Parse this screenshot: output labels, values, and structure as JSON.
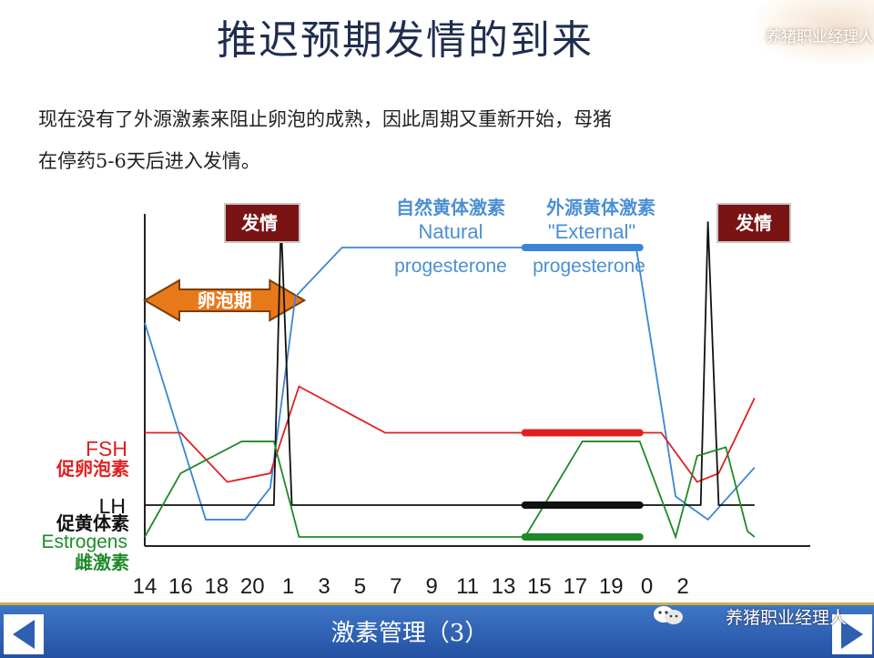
{
  "slide": {
    "title": "推迟预期发情的到来",
    "watermark": "养猪职业经理人",
    "body_line1": "现在没有了外源激素来阻止卵泡的成熟，因此周期又重新开始，母猪",
    "body_line2": "在停药5-6天后进入发情。",
    "footer_title": "激素管理（3）",
    "footer_watermark": "养猪职业经理人"
  },
  "colors": {
    "progesterone": "#3a86d6",
    "fsh": "#e02020",
    "lh": "#111111",
    "estrogens": "#1f8a2a",
    "label_blue": "#4b8fd3",
    "estrus_box": "#7a1414",
    "follicle_arrow": "#e8791a",
    "footer": "#2e5fb0"
  },
  "icons": {
    "nav_left": "left-arrow-icon",
    "nav_right": "right-arrow-icon",
    "wechat": "wechat-icon"
  },
  "chart_data": {
    "type": "line",
    "x_ticks": [
      "14",
      "16",
      "18",
      "20",
      "1",
      "3",
      "5",
      "7",
      "9",
      "11",
      "13",
      "15",
      "17",
      "19",
      "0",
      "2"
    ],
    "labels": {
      "estrus": "发情",
      "follicular_phase": "卵泡期",
      "natural_cn": "自然黄体激素",
      "natural_en1": "Natural",
      "natural_en2": "progesterone",
      "external_cn": "外源黄体激素",
      "external_en1": "\"External\"",
      "external_en2": "progesterone",
      "fsh_en": "FSH",
      "fsh_cn": "促卵泡素",
      "lh_en": "LH",
      "lh_cn": "促黄体素",
      "estrogens_en": "Estrogens",
      "estrogens_cn": "雌激素"
    },
    "series": [
      {
        "key": "progesterone",
        "values": [
          [
            0,
            0.74
          ],
          [
            1.7,
            0.06
          ],
          [
            2.8,
            0.06
          ],
          [
            3.5,
            0.17
          ],
          [
            4.2,
            0.83
          ],
          [
            5.5,
            1.0
          ],
          [
            13.7,
            1.0
          ],
          [
            14.8,
            0.14
          ],
          [
            15.7,
            0.06
          ],
          [
            17,
            0.24
          ]
        ]
      },
      {
        "key": "fsh",
        "values": [
          [
            0,
            0.36
          ],
          [
            1,
            0.36
          ],
          [
            2.3,
            0.19
          ],
          [
            3.5,
            0.22
          ],
          [
            4.3,
            0.52
          ],
          [
            6.7,
            0.36
          ],
          [
            14.4,
            0.36
          ],
          [
            15.4,
            0.19
          ],
          [
            16,
            0.22
          ],
          [
            17,
            0.48
          ]
        ]
      },
      {
        "key": "lh",
        "values": [
          [
            0,
            0.11
          ],
          [
            3.6,
            0.11
          ],
          [
            3.8,
            1.09
          ],
          [
            4.1,
            0.11
          ],
          [
            15.5,
            0.11
          ],
          [
            15.7,
            1.09
          ],
          [
            16,
            0.11
          ],
          [
            17,
            0.11
          ]
        ]
      },
      {
        "key": "estrogens",
        "values": [
          [
            0,
            0.0
          ],
          [
            1,
            0.22
          ],
          [
            2.7,
            0.33
          ],
          [
            3.6,
            0.33
          ],
          [
            4.3,
            0.0
          ],
          [
            10.6,
            0.0
          ],
          [
            12.2,
            0.33
          ],
          [
            13.8,
            0.33
          ],
          [
            14.8,
            0.0
          ],
          [
            15.4,
            0.28
          ],
          [
            16.2,
            0.31
          ],
          [
            16.8,
            0.02
          ],
          [
            17,
            0.0
          ]
        ]
      }
    ],
    "external_segments": {
      "x_start": 10.6,
      "x_end": 13.8,
      "progesterone": 1.0,
      "fsh": 0.36,
      "lh": 0.11,
      "estrogens": 0.0
    },
    "follicular_range": [
      0,
      4.45
    ],
    "estrus_peaks": [
      3.8,
      15.7
    ]
  }
}
